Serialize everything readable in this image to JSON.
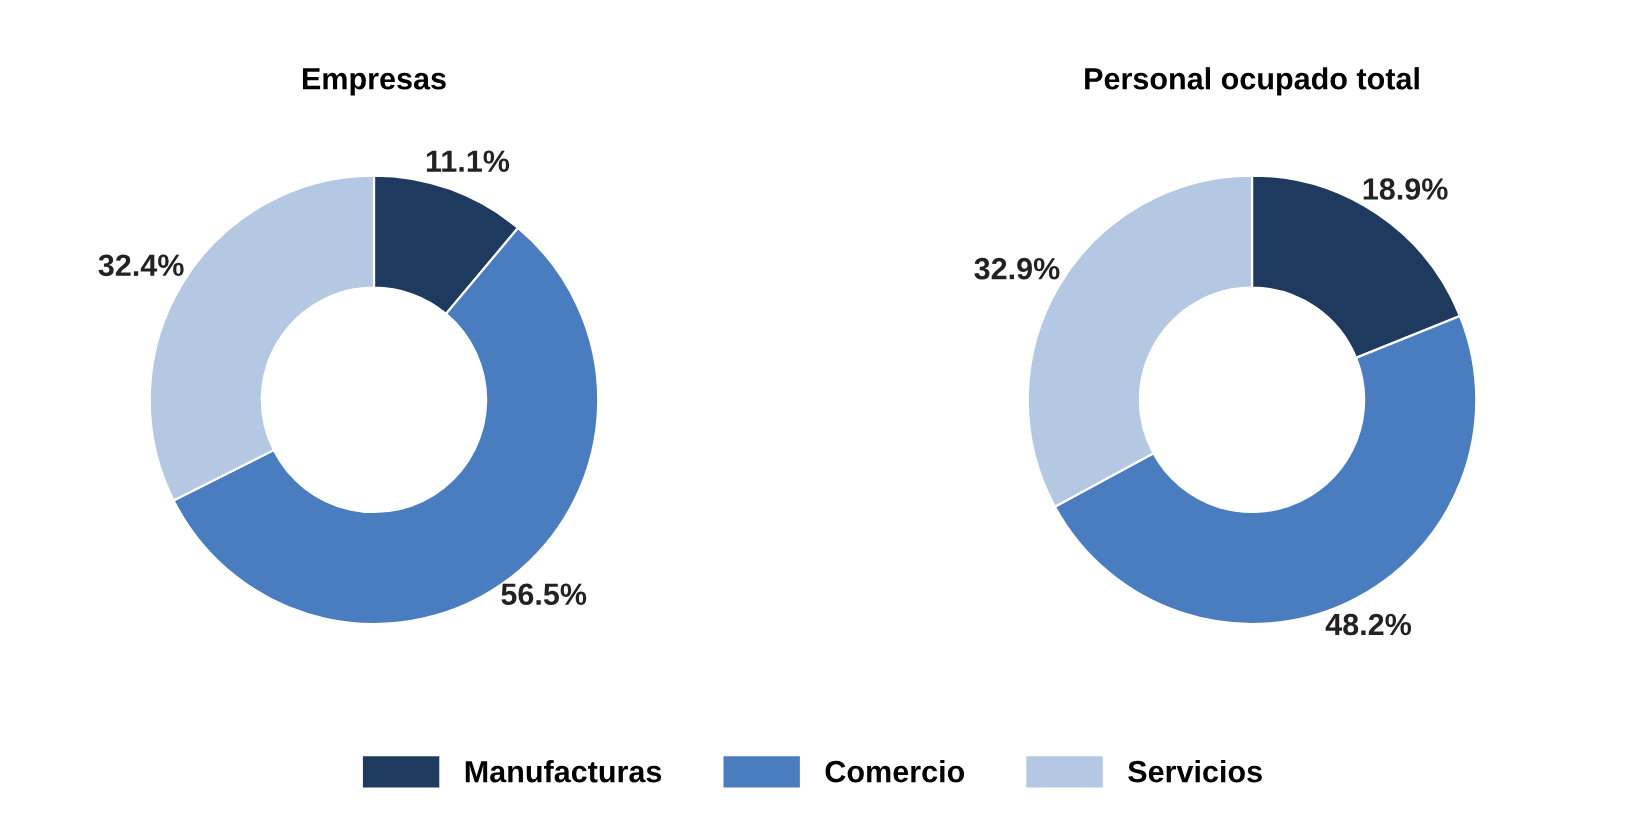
{
  "chart_data": [
    {
      "type": "donut",
      "title": "Empresas",
      "categories": [
        "Manufacturas",
        "Comercio",
        "Servicios"
      ],
      "values": [
        11.1,
        56.5,
        32.4
      ],
      "colors": [
        "#1f3a5f",
        "#4a7cc0",
        "#b4c7e3"
      ],
      "value_labels": [
        "11.1%",
        "56.5%",
        "32.4%"
      ],
      "legend": "bottom"
    },
    {
      "type": "donut",
      "title": "Personal ocupado total",
      "categories": [
        null,
        null,
        null
      ],
      "values": [
        18.9,
        48.2,
        32.9
      ],
      "colors": [
        "#1f3a5f",
        "#4a7cc0",
        "#b4c7e3"
      ],
      "value_labels": [
        "18.9%",
        "48.2%",
        "32.9%"
      ]
    }
  ]
}
